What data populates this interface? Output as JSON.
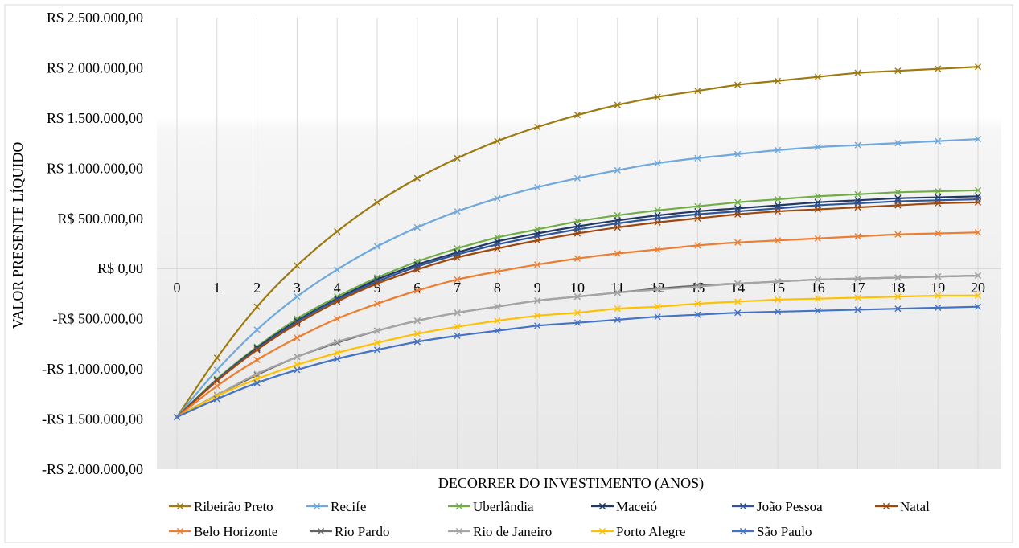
{
  "chart_data": {
    "type": "line",
    "title": "",
    "xlabel": "DECORRER DO INVESTIMENTO (ANOS)",
    "ylabel": "VALOR PRESENTE LÍQUIDO",
    "x": [
      0,
      1,
      2,
      3,
      4,
      5,
      6,
      7,
      8,
      9,
      10,
      11,
      12,
      13,
      14,
      15,
      16,
      17,
      18,
      19,
      20
    ],
    "ylim": [
      -2000000,
      2500000
    ],
    "yticks": [
      2500000,
      2000000,
      1500000,
      1000000,
      500000,
      0,
      -500000,
      -1000000,
      -1500000,
      -2000000
    ],
    "ytick_labels": [
      "R$ 2.500.000,00",
      "R$ 2.000.000,00",
      "R$ 1.500.000,00",
      "R$ 1.000.000,00",
      "R$ 500.000,00",
      "R$ 0,00",
      "-R$ 500.000,00",
      "-R$ 1.000.000,00",
      "-R$ 1.500.000,00",
      "-R$ 2.000.000,00"
    ],
    "xtick_labels": [
      "0",
      "1",
      "2",
      "3",
      "4",
      "5",
      "6",
      "7",
      "8",
      "9",
      "10",
      "11",
      "12",
      "13",
      "14",
      "15",
      "16",
      "17",
      "18",
      "19",
      "20"
    ],
    "grid": "vertical",
    "legend_position": "bottom",
    "series": [
      {
        "name": "Ribeirão Preto",
        "color": "#9c7a0f",
        "values": [
          -1480000,
          -890000,
          -380000,
          30000,
          370000,
          660000,
          900000,
          1100000,
          1270000,
          1410000,
          1530000,
          1630000,
          1710000,
          1770000,
          1830000,
          1870000,
          1910000,
          1950000,
          1970000,
          1990000,
          2010000
        ]
      },
      {
        "name": "Recife",
        "color": "#6fa8dc",
        "values": [
          -1480000,
          -1010000,
          -610000,
          -280000,
          -10000,
          220000,
          410000,
          570000,
          700000,
          810000,
          900000,
          980000,
          1050000,
          1100000,
          1140000,
          1180000,
          1210000,
          1230000,
          1250000,
          1270000,
          1290000
        ]
      },
      {
        "name": "Uberlândia",
        "color": "#70ad47",
        "values": [
          -1480000,
          -1100000,
          -780000,
          -500000,
          -280000,
          -90000,
          70000,
          200000,
          310000,
          390000,
          470000,
          530000,
          580000,
          620000,
          660000,
          690000,
          720000,
          740000,
          760000,
          770000,
          780000
        ]
      },
      {
        "name": "Maceió",
        "color": "#1f3864",
        "values": [
          -1480000,
          -1110000,
          -790000,
          -520000,
          -300000,
          -110000,
          40000,
          160000,
          270000,
          350000,
          420000,
          480000,
          530000,
          570000,
          600000,
          630000,
          660000,
          680000,
          700000,
          710000,
          720000
        ]
      },
      {
        "name": "João Pessoa",
        "color": "#2e5597",
        "values": [
          -1480000,
          -1110000,
          -800000,
          -530000,
          -310000,
          -130000,
          20000,
          140000,
          240000,
          320000,
          390000,
          450000,
          500000,
          540000,
          570000,
          600000,
          630000,
          650000,
          670000,
          680000,
          690000
        ]
      },
      {
        "name": "Natal",
        "color": "#9e480e",
        "values": [
          -1480000,
          -1120000,
          -810000,
          -550000,
          -330000,
          -150000,
          -10000,
          110000,
          200000,
          280000,
          350000,
          410000,
          460000,
          500000,
          540000,
          570000,
          590000,
          610000,
          630000,
          650000,
          660000
        ]
      },
      {
        "name": "Belo Horizonte",
        "color": "#ed7d31",
        "values": [
          -1480000,
          -1170000,
          -910000,
          -690000,
          -500000,
          -350000,
          -220000,
          -110000,
          -30000,
          40000,
          100000,
          150000,
          190000,
          230000,
          260000,
          280000,
          300000,
          320000,
          340000,
          350000,
          360000
        ]
      },
      {
        "name": "Rio Pardo",
        "color": "#636363",
        "values": [
          -1480000,
          -1260000,
          -1060000,
          -880000,
          -740000,
          -620000,
          -520000,
          -440000,
          -380000,
          -320000,
          -280000,
          -240000,
          -200000,
          -170000,
          -150000,
          -130000,
          -110000,
          -100000,
          -90000,
          -80000,
          -70000
        ]
      },
      {
        "name": "Rio de Janeiro",
        "color": "#a5a5a5",
        "values": [
          -1480000,
          -1260000,
          -1050000,
          -880000,
          -730000,
          -620000,
          -520000,
          -440000,
          -380000,
          -320000,
          -280000,
          -240000,
          -210000,
          -180000,
          -150000,
          -130000,
          -110000,
          -100000,
          -90000,
          -80000,
          -70000
        ]
      },
      {
        "name": "Porto Alegre",
        "color": "#ffc000",
        "values": [
          -1480000,
          -1270000,
          -1100000,
          -960000,
          -840000,
          -740000,
          -650000,
          -580000,
          -520000,
          -470000,
          -440000,
          -400000,
          -380000,
          -350000,
          -330000,
          -310000,
          -300000,
          -290000,
          -280000,
          -270000,
          -270000
        ]
      },
      {
        "name": "São Paulo",
        "color": "#4472c4",
        "values": [
          -1480000,
          -1300000,
          -1140000,
          -1010000,
          -900000,
          -810000,
          -730000,
          -670000,
          -620000,
          -570000,
          -540000,
          -510000,
          -480000,
          -460000,
          -440000,
          -430000,
          -420000,
          -410000,
          -400000,
          -390000,
          -380000
        ]
      }
    ]
  }
}
